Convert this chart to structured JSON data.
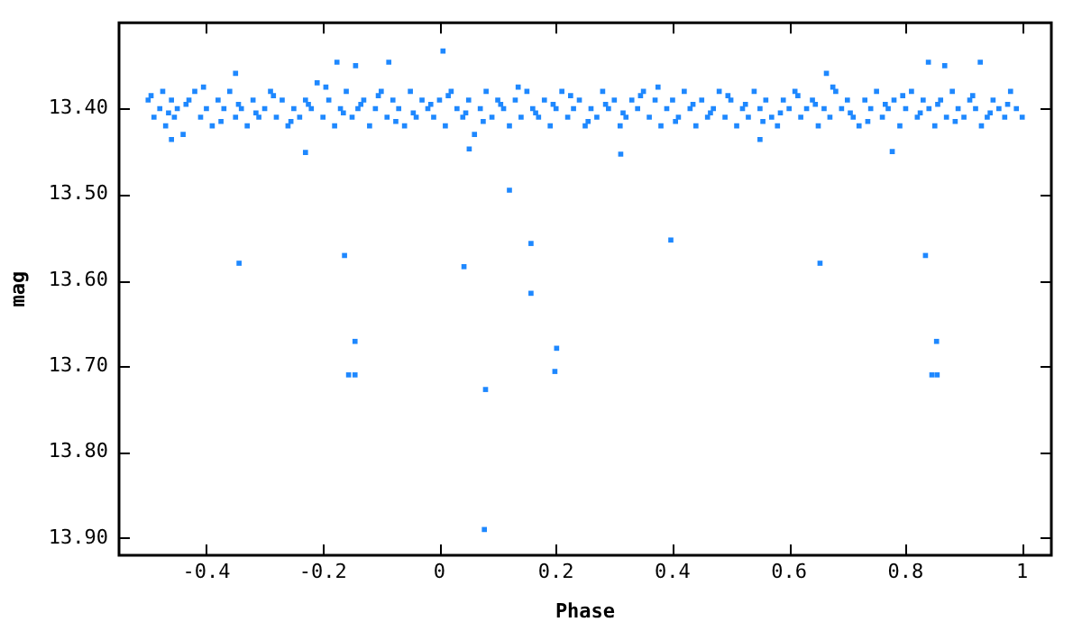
{
  "chart_data": {
    "type": "scatter",
    "xlabel": "Phase",
    "ylabel": "mag",
    "marker": "square",
    "grid": false,
    "legend": false,
    "xlim": [
      -0.55,
      1.05
    ],
    "xticks": [
      -0.4,
      -0.2,
      0,
      0.2,
      0.4,
      0.6,
      0.8,
      1
    ],
    "ylim": [
      13.92,
      13.3
    ],
    "yticks": [
      {
        "value": 13.4,
        "label": "13.40"
      },
      {
        "value": 13.5,
        "label": "13.50"
      },
      {
        "value": 13.6,
        "label": "13.60"
      },
      {
        "value": 13.7,
        "label": "13.70"
      },
      {
        "value": 13.8,
        "label": "13.80"
      },
      {
        "value": 13.9,
        "label": "13.90"
      }
    ],
    "series": [
      {
        "color": "#1e88ff",
        "x": [
          -0.5,
          -0.49,
          -0.48,
          -0.475,
          -0.47,
          -0.46,
          -0.455,
          -0.45,
          -0.44,
          -0.43,
          -0.42,
          -0.41,
          -0.4,
          -0.39,
          -0.38,
          -0.37,
          -0.36,
          -0.35,
          -0.34,
          -0.33,
          -0.32,
          -0.31,
          -0.3,
          -0.29,
          -0.28,
          -0.27,
          -0.26,
          -0.25,
          -0.24,
          -0.23,
          -0.22,
          -0.21,
          -0.2,
          -0.19,
          -0.18,
          -0.17,
          -0.16,
          -0.15,
          -0.14,
          -0.13,
          -0.12,
          -0.11,
          -0.1,
          -0.09,
          -0.08,
          -0.07,
          -0.06,
          -0.05,
          -0.04,
          -0.03,
          -0.02,
          -0.01,
          0,
          0.01,
          0.02,
          0.03,
          0.04,
          0.05,
          0.06,
          0.07,
          0.08,
          0.09,
          0.1,
          0.11,
          0.12,
          0.13,
          0.14,
          0.15,
          0.16,
          0.17,
          0.18,
          0.19,
          0.2,
          0.21,
          0.22,
          0.23,
          0.24,
          0.25,
          0.26,
          0.27,
          0.28,
          0.29,
          0.3,
          0.31,
          0.32,
          0.33,
          0.34,
          0.35,
          0.36,
          0.37,
          0.38,
          0.39,
          0.4,
          0.41,
          0.42,
          0.43,
          0.44,
          0.45,
          0.46,
          0.47,
          0.48,
          0.49,
          0.5,
          0.51,
          0.52,
          0.53,
          0.54,
          0.55,
          0.56,
          0.57,
          0.58,
          0.59,
          0.6,
          0.61,
          0.62,
          0.63,
          0.64,
          0.65,
          0.66,
          0.67,
          0.68,
          0.69,
          0.7,
          0.71,
          0.72,
          0.73,
          0.74,
          0.75,
          0.76,
          0.77,
          0.78,
          0.79,
          0.8,
          0.81,
          0.82,
          0.83,
          0.84,
          0.85,
          0.86,
          0.87,
          0.88,
          0.89,
          0.9,
          0.91,
          0.92,
          0.93,
          0.94,
          0.95,
          0.96,
          0.97,
          0.98,
          0.99,
          1,
          -0.495,
          -0.465,
          -0.435,
          -0.405,
          -0.375,
          -0.345,
          -0.315,
          -0.285,
          -0.255,
          -0.225,
          -0.195,
          -0.165,
          -0.135,
          -0.105,
          -0.075,
          -0.045,
          -0.015,
          0.015,
          0.045,
          0.075,
          0.105,
          0.135,
          0.165,
          0.195,
          0.225,
          0.255,
          0.285,
          0.315,
          0.345,
          0.375,
          0.405,
          0.435,
          0.465,
          0.495,
          0.525,
          0.555,
          0.585,
          0.615,
          0.645,
          0.675,
          0.705,
          0.735,
          0.765,
          0.795,
          0.825,
          0.855,
          0.885,
          0.915,
          0.945,
          0.975,
          0.006,
          -0.35,
          -0.176,
          -0.144,
          -0.087,
          -0.23,
          -0.46,
          0.051,
          0.839,
          0.928,
          0.867,
          0.664,
          0.311,
          0.777,
          0.55,
          -0.344,
          -0.163,
          0.042,
          0.12,
          0.157,
          0.157,
          0.397,
          0.653,
          0.834,
          -0.145,
          -0.156,
          -0.145,
          0.201,
          0.198,
          0.079,
          0.077,
          0.853,
          0.845,
          0.854
        ],
        "values": [
          13.39,
          13.41,
          13.4,
          13.38,
          13.42,
          13.39,
          13.41,
          13.4,
          13.43,
          13.39,
          13.38,
          13.41,
          13.4,
          13.42,
          13.39,
          13.4,
          13.38,
          13.41,
          13.4,
          13.42,
          13.39,
          13.41,
          13.4,
          13.38,
          13.41,
          13.39,
          13.42,
          13.4,
          13.41,
          13.39,
          13.4,
          13.37,
          13.41,
          13.39,
          13.42,
          13.4,
          13.38,
          13.41,
          13.4,
          13.39,
          13.42,
          13.4,
          13.38,
          13.41,
          13.39,
          13.4,
          13.42,
          13.38,
          13.41,
          13.39,
          13.4,
          13.41,
          13.39,
          13.42,
          13.38,
          13.4,
          13.41,
          13.39,
          13.43,
          13.4,
          13.38,
          13.41,
          13.39,
          13.4,
          13.42,
          13.39,
          13.41,
          13.38,
          13.4,
          13.41,
          13.39,
          13.42,
          13.4,
          13.38,
          13.41,
          13.4,
          13.39,
          13.42,
          13.4,
          13.41,
          13.38,
          13.4,
          13.39,
          13.42,
          13.41,
          13.39,
          13.4,
          13.38,
          13.41,
          13.39,
          13.42,
          13.4,
          13.39,
          13.41,
          13.38,
          13.4,
          13.42,
          13.39,
          13.41,
          13.4,
          13.38,
          13.41,
          13.39,
          13.42,
          13.4,
          13.41,
          13.38,
          13.4,
          13.39,
          13.41,
          13.42,
          13.39,
          13.4,
          13.38,
          13.41,
          13.4,
          13.39,
          13.42,
          13.4,
          13.41,
          13.38,
          13.4,
          13.39,
          13.41,
          13.42,
          13.39,
          13.4,
          13.38,
          13.41,
          13.4,
          13.39,
          13.42,
          13.4,
          13.38,
          13.41,
          13.39,
          13.4,
          13.42,
          13.39,
          13.41,
          13.38,
          13.4,
          13.41,
          13.39,
          13.4,
          13.42,
          13.41,
          13.39,
          13.4,
          13.41,
          13.38,
          13.4,
          13.41,
          13.385,
          13.405,
          13.395,
          13.375,
          13.415,
          13.395,
          13.405,
          13.385,
          13.415,
          13.395,
          13.375,
          13.405,
          13.395,
          13.385,
          13.415,
          13.405,
          13.395,
          13.385,
          13.405,
          13.415,
          13.395,
          13.375,
          13.405,
          13.395,
          13.385,
          13.415,
          13.395,
          13.405,
          13.385,
          13.375,
          13.415,
          13.395,
          13.405,
          13.385,
          13.395,
          13.415,
          13.405,
          13.385,
          13.395,
          13.375,
          13.405,
          13.415,
          13.395,
          13.385,
          13.405,
          13.395,
          13.415,
          13.385,
          13.405,
          13.395,
          13.333,
          13.359,
          13.346,
          13.35,
          13.346,
          13.451,
          13.436,
          13.447,
          13.346,
          13.346,
          13.35,
          13.359,
          13.453,
          13.45,
          13.436,
          13.58,
          13.571,
          13.584,
          13.495,
          13.557,
          13.615,
          13.553,
          13.58,
          13.571,
          13.671,
          13.71,
          13.71,
          13.679,
          13.706,
          13.727,
          13.89,
          13.671,
          13.71,
          13.71
        ]
      }
    ]
  }
}
